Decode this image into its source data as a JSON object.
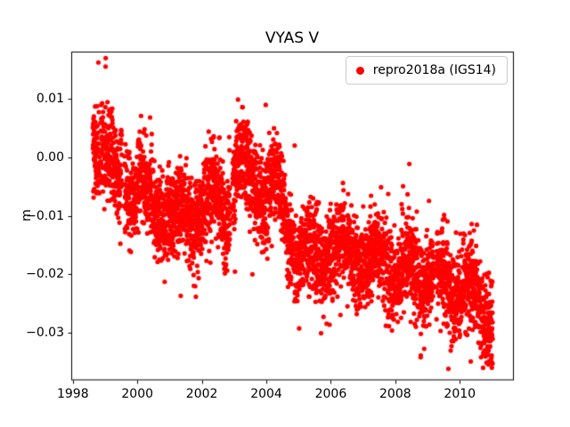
{
  "chart_data": {
    "type": "scatter",
    "title": "VYAS V",
    "xlabel": "",
    "ylabel": "m",
    "grid": false,
    "legend": {
      "label": "repro2018a (IGS14)",
      "position": "upper right"
    },
    "marker": {
      "color": "#ff0000",
      "radius_px": 2.6
    },
    "axis_color": "#000000",
    "background_color": "#ffffff",
    "xlim": [
      1997.95,
      2011.65
    ],
    "ylim": [
      -0.038,
      0.018
    ],
    "x_ticks": [
      1998,
      2000,
      2002,
      2004,
      2006,
      2008,
      2010
    ],
    "x_tick_labels": [
      "1998",
      "2000",
      "2002",
      "2004",
      "2006",
      "2008",
      "2010"
    ],
    "y_ticks": [
      0.01,
      0.0,
      -0.01,
      -0.02,
      -0.03
    ],
    "y_tick_labels": [
      "0.01",
      "0.00",
      "−0.01",
      "−0.02",
      "−0.03"
    ],
    "series_generator": {
      "description": "GNSS station vertical position daily time series; dense red scatter with annual oscillation, noise, and a long-term downward trend with a bump near 2003.",
      "n_points": 4500,
      "t_start": 1998.62,
      "t_end": 2011.02,
      "seed": 42,
      "noise_sd": 0.0038,
      "outlier_prob": 0.02,
      "outlier_sd": 0.007,
      "seasonal_amplitude": 0.0028,
      "seasonal_phase": 0.1,
      "gaps": [
        [
          1999.52,
          1999.6
        ],
        [
          2002.88,
          2002.95
        ],
        [
          2009.2,
          2009.27
        ]
      ],
      "trend_anchors": [
        [
          1998.62,
          0.0025
        ],
        [
          1999.05,
          0.003
        ],
        [
          1999.35,
          -0.006
        ],
        [
          1999.75,
          -0.005
        ],
        [
          2000.05,
          -0.003
        ],
        [
          2000.45,
          -0.01
        ],
        [
          2000.95,
          -0.0075
        ],
        [
          2001.3,
          -0.012
        ],
        [
          2001.8,
          -0.0095
        ],
        [
          2002.25,
          -0.007
        ],
        [
          2002.7,
          -0.009
        ],
        [
          2003.1,
          -0.001
        ],
        [
          2003.45,
          -0.003
        ],
        [
          2003.95,
          -0.0055
        ],
        [
          2004.25,
          -0.0045
        ],
        [
          2004.65,
          -0.0125
        ],
        [
          2005.05,
          -0.016
        ],
        [
          2005.45,
          -0.018
        ],
        [
          2005.95,
          -0.015
        ],
        [
          2006.35,
          -0.017
        ],
        [
          2006.85,
          -0.016
        ],
        [
          2007.25,
          -0.0185
        ],
        [
          2007.75,
          -0.017
        ],
        [
          2008.15,
          -0.02
        ],
        [
          2008.6,
          -0.019
        ],
        [
          2009.05,
          -0.021
        ],
        [
          2009.5,
          -0.021
        ],
        [
          2010.0,
          -0.022
        ],
        [
          2010.45,
          -0.024
        ],
        [
          2011.02,
          -0.0265
        ]
      ]
    }
  }
}
